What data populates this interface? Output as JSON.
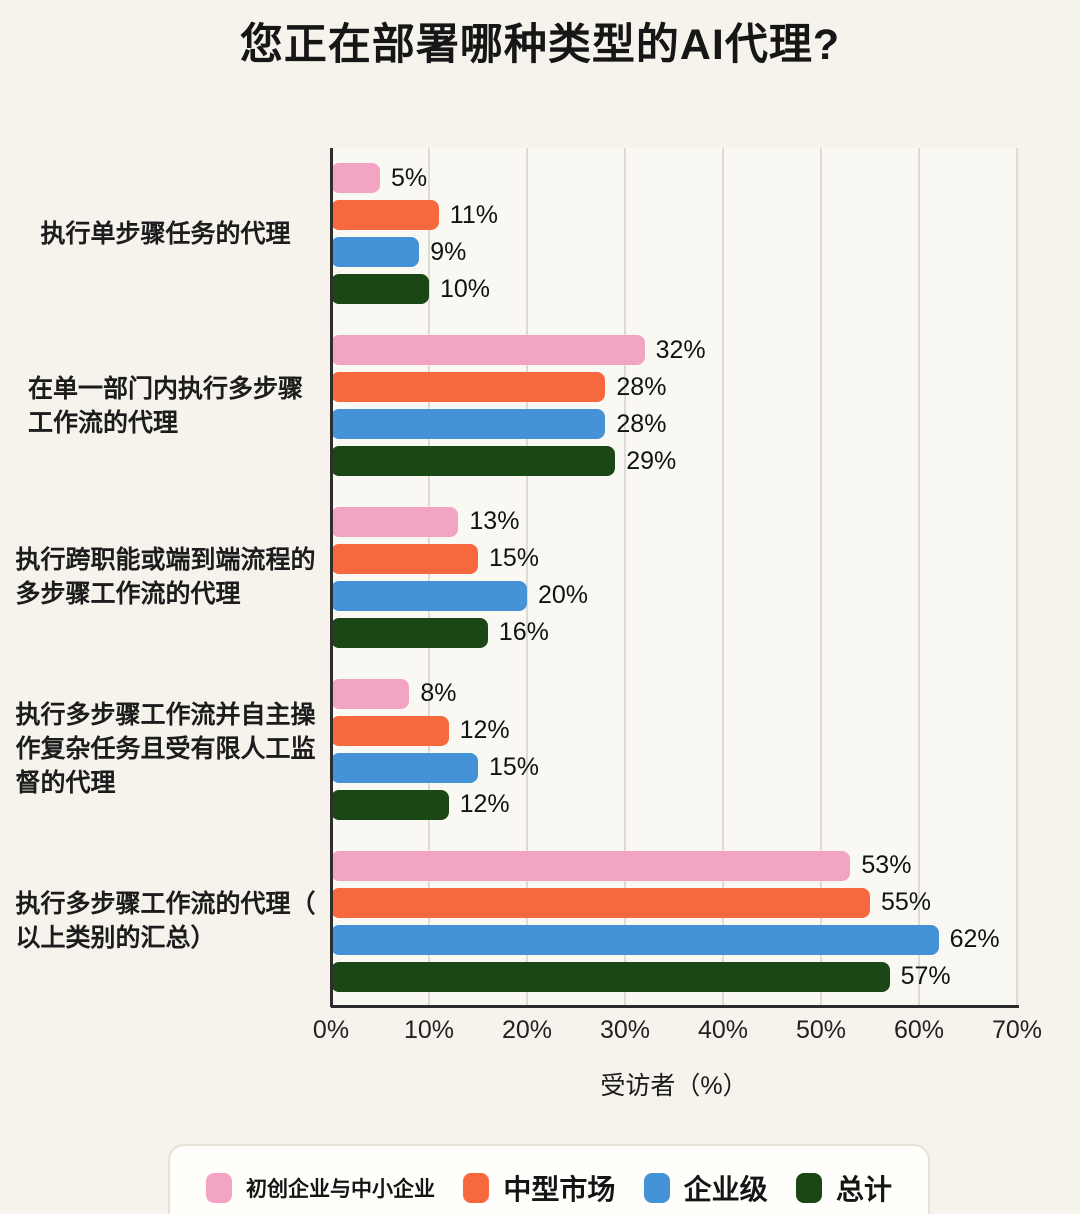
{
  "page": {
    "background": "#F6F3EC",
    "plot_background": "#FAF8F3"
  },
  "chart_data": {
    "type": "bar",
    "orientation": "horizontal",
    "title": "您正在部署哪种类型的AI代理?",
    "xlabel": "受访者（%）",
    "xlim": [
      0,
      70
    ],
    "tick_step": 10,
    "tick_labels": [
      "0%",
      "10%",
      "20%",
      "30%",
      "40%",
      "50%",
      "60%",
      "70%"
    ],
    "grid": true,
    "legend_position": "bottom",
    "value_suffix": "%",
    "categories": [
      {
        "key": "single-step-tasks",
        "lines": [
          "执行单步骤任务的代理"
        ]
      },
      {
        "key": "multi-step-single-dept",
        "lines": [
          "在单一部门内执行多步骤",
          "工作流的代理"
        ]
      },
      {
        "key": "cross-functional-e2e",
        "lines": [
          "执行跨职能或端到端流程的",
          "多步骤工作流的代理"
        ]
      },
      {
        "key": "autonomous-limited-oversight",
        "lines": [
          "执行多步骤工作流并自主操",
          "作复杂任务且受有限人工监",
          "督的代理"
        ]
      },
      {
        "key": "multi-step-total",
        "lines": [
          "执行多步骤工作流的代理（",
          "以上类别的汇总）"
        ]
      }
    ],
    "series": [
      {
        "key": "smb",
        "name": "初创企业与中小企业",
        "color": "#F3A4C3",
        "values": [
          5,
          32,
          13,
          8,
          53
        ]
      },
      {
        "key": "mid-market",
        "name": "中型市场",
        "color": "#F8683F",
        "values": [
          11,
          28,
          15,
          12,
          55
        ]
      },
      {
        "key": "enterprise",
        "name": "企业级",
        "color": "#4493D7",
        "values": [
          9,
          28,
          20,
          15,
          62
        ]
      },
      {
        "key": "total",
        "name": "总计",
        "color": "#1B4717",
        "values": [
          10,
          29,
          16,
          12,
          57
        ]
      }
    ]
  }
}
